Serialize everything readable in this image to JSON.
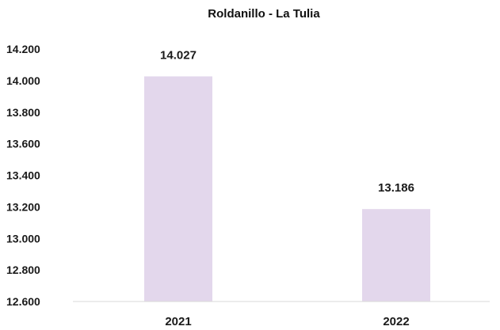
{
  "chart_data": {
    "type": "bar",
    "title": "Roldanillo - La Tulia",
    "categories": [
      "2021",
      "2022"
    ],
    "values": [
      14027,
      13186
    ],
    "value_labels": [
      "14.027",
      "13.186"
    ],
    "ylim": [
      12600,
      14200
    ],
    "yticks": [
      12600,
      12800,
      13000,
      13200,
      13400,
      13600,
      13800,
      14000,
      14200
    ],
    "ytick_labels": [
      "12.600",
      "12.800",
      "13.000",
      "13.200",
      "13.400",
      "13.600",
      "13.800",
      "14.000",
      "14.200"
    ],
    "grid": false,
    "bar_color": "#e3d7ec",
    "axis_color": "#d9d9d9"
  }
}
